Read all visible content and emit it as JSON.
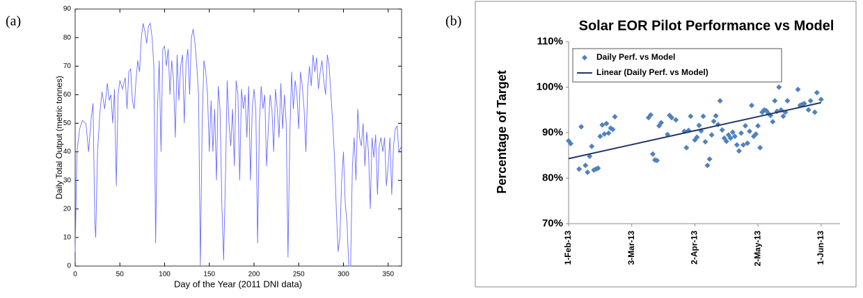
{
  "chart_data": [
    {
      "type": "line",
      "label": "(a)",
      "xlabel": "Day of the Year (2011 DNI data)",
      "ylabel": "Daily Total Output (metric tonnes)",
      "color": "#6b6bff",
      "grid": false,
      "xlim": [
        0,
        365
      ],
      "ylim": [
        0,
        90
      ],
      "xticks": [
        0,
        50,
        100,
        150,
        200,
        250,
        300,
        350
      ],
      "yticks": [
        0,
        10,
        20,
        30,
        40,
        50,
        60,
        70,
        80,
        90
      ],
      "x": [
        0,
        2,
        5,
        8,
        12,
        15,
        18,
        20,
        22,
        23,
        25,
        28,
        30,
        33,
        36,
        38,
        40,
        42,
        44,
        46,
        48,
        50,
        53,
        56,
        58,
        60,
        62,
        64,
        66,
        68,
        70,
        72,
        74,
        76,
        78,
        80,
        82,
        84,
        86,
        88,
        90,
        92,
        94,
        96,
        98,
        100,
        102,
        104,
        106,
        108,
        110,
        112,
        114,
        116,
        118,
        120,
        122,
        124,
        126,
        128,
        130,
        132,
        134,
        136,
        138,
        140,
        142,
        144,
        146,
        148,
        150,
        152,
        154,
        156,
        158,
        160,
        162,
        164,
        166,
        168,
        170,
        172,
        174,
        176,
        178,
        180,
        182,
        184,
        186,
        188,
        190,
        192,
        194,
        196,
        198,
        200,
        202,
        204,
        206,
        208,
        210,
        212,
        214,
        216,
        218,
        220,
        222,
        224,
        226,
        228,
        230,
        232,
        234,
        236,
        238,
        240,
        242,
        244,
        246,
        248,
        250,
        252,
        254,
        256,
        258,
        260,
        262,
        264,
        266,
        268,
        270,
        272,
        274,
        276,
        278,
        280,
        282,
        284,
        286,
        288,
        290,
        292,
        294,
        296,
        298,
        300,
        302,
        304,
        306,
        308,
        310,
        312,
        314,
        316,
        318,
        320,
        322,
        324,
        326,
        328,
        330,
        332,
        334,
        336,
        338,
        340,
        342,
        344,
        346,
        348,
        350,
        352,
        354,
        356,
        358,
        360,
        362,
        365
      ],
      "values": [
        5,
        40,
        48,
        51,
        50,
        40,
        52,
        57,
        15,
        10,
        40,
        55,
        61,
        55,
        64,
        58,
        60,
        50,
        62,
        28,
        60,
        65,
        62,
        66,
        55,
        68,
        69,
        58,
        55,
        65,
        72,
        68,
        80,
        85,
        82,
        78,
        84,
        85,
        80,
        70,
        8,
        55,
        72,
        40,
        76,
        77,
        70,
        76,
        60,
        72,
        65,
        45,
        74,
        58,
        70,
        74,
        50,
        71,
        76,
        60,
        80,
        83,
        78,
        70,
        60,
        0,
        50,
        72,
        68,
        60,
        40,
        58,
        40,
        55,
        30,
        63,
        55,
        22,
        2,
        30,
        65,
        50,
        42,
        55,
        35,
        65,
        60,
        30,
        62,
        55,
        60,
        45,
        63,
        30,
        55,
        62,
        55,
        8,
        50,
        63,
        55,
        60,
        35,
        48,
        60,
        55,
        40,
        62,
        55,
        45,
        64,
        48,
        60,
        50,
        3,
        45,
        68,
        55,
        65,
        60,
        48,
        68,
        63,
        55,
        40,
        62,
        70,
        63,
        74,
        68,
        73,
        62,
        68,
        72,
        65,
        60,
        74,
        70,
        60,
        50,
        38,
        20,
        5,
        10,
        30,
        40,
        22,
        15,
        0,
        0,
        35,
        45,
        30,
        55,
        45,
        42,
        50,
        35,
        47,
        40,
        20,
        45,
        38,
        46,
        25,
        42,
        45,
        40,
        45,
        28,
        35,
        45,
        25,
        42,
        48,
        49,
        40,
        42
      ]
    },
    {
      "type": "scatter",
      "label": "(b)",
      "title": "Solar EOR Pilot Performance vs Model",
      "ylabel": "Percentage of Target",
      "grid": false,
      "legend": "top-left",
      "xlim": [
        "2013-02-01",
        "2013-06-10"
      ],
      "ylim": [
        70,
        110
      ],
      "xticks": [
        {
          "value": "2013-02-01",
          "label": "1-Feb-13"
        },
        {
          "value": "2013-03-03",
          "label": "3-Mar-13"
        },
        {
          "value": "2013-04-02",
          "label": "2-Apr-13"
        },
        {
          "value": "2013-05-02",
          "label": "2-May-13"
        },
        {
          "value": "2013-06-01",
          "label": "1-Jun-13"
        }
      ],
      "yticks": [
        {
          "value": 70,
          "label": "70%"
        },
        {
          "value": 80,
          "label": "80%"
        },
        {
          "value": 90,
          "label": "90%"
        },
        {
          "value": 100,
          "label": "100%"
        },
        {
          "value": 110,
          "label": "110%"
        }
      ],
      "series": [
        {
          "name": "Daily Perf. vs Model",
          "color": "#4f81bd",
          "marker": "diamond",
          "x": [
            "2013-02-01",
            "2013-02-02",
            "2013-02-06",
            "2013-02-07",
            "2013-02-09",
            "2013-02-10",
            "2013-02-11",
            "2013-02-12",
            "2013-02-13",
            "2013-02-14",
            "2013-02-15",
            "2013-02-16",
            "2013-02-17",
            "2013-02-18",
            "2013-02-19",
            "2013-02-20",
            "2013-02-21",
            "2013-02-22",
            "2013-02-23",
            "2013-03-11",
            "2013-03-12",
            "2013-03-13",
            "2013-03-14",
            "2013-03-15",
            "2013-03-16",
            "2013-03-17",
            "2013-03-20",
            "2013-03-21",
            "2013-03-22",
            "2013-03-24",
            "2013-03-28",
            "2013-03-29",
            "2013-03-30",
            "2013-03-31",
            "2013-04-02",
            "2013-04-03",
            "2013-04-04",
            "2013-04-05",
            "2013-04-06",
            "2013-04-07",
            "2013-04-08",
            "2013-04-09",
            "2013-04-10",
            "2013-04-11",
            "2013-04-12",
            "2013-04-13",
            "2013-04-14",
            "2013-04-15",
            "2013-04-16",
            "2013-04-17",
            "2013-04-18",
            "2013-04-19",
            "2013-04-20",
            "2013-04-21",
            "2013-04-22",
            "2013-04-23",
            "2013-04-24",
            "2013-04-25",
            "2013-04-26",
            "2013-04-27",
            "2013-04-28",
            "2013-04-29",
            "2013-04-30",
            "2013-05-01",
            "2013-05-02",
            "2013-05-03",
            "2013-05-04",
            "2013-05-05",
            "2013-05-06",
            "2013-05-07",
            "2013-05-08",
            "2013-05-09",
            "2013-05-10",
            "2013-05-11",
            "2013-05-12",
            "2013-05-13",
            "2013-05-14",
            "2013-05-15",
            "2013-05-16",
            "2013-05-21",
            "2013-05-22",
            "2013-05-23",
            "2013-05-24",
            "2013-05-26",
            "2013-05-27",
            "2013-05-29",
            "2013-05-30",
            "2013-06-01"
          ],
          "values": [
            88.2,
            87.6,
            82,
            91.3,
            82.8,
            81.3,
            84.8,
            87,
            81.8,
            82,
            82.2,
            89.2,
            91.7,
            89.7,
            92,
            89.9,
            91,
            90.7,
            93.5,
            93.3,
            93.9,
            85.3,
            84,
            83.9,
            91.5,
            92.2,
            89.6,
            93.8,
            93.3,
            92.8,
            90.3,
            86.7,
            90.5,
            93.6,
            88.4,
            89,
            91.6,
            90.4,
            93.6,
            88,
            82.8,
            84.2,
            89.5,
            92.5,
            93.7,
            91.8,
            97,
            90.6,
            88.8,
            88.1,
            89.5,
            88.8,
            90.1,
            89.2,
            87.3,
            86,
            89.9,
            87.3,
            91.5,
            87.7,
            90.3,
            96,
            89.2,
            89.7,
            91.5,
            86.7,
            94.5,
            95,
            94.8,
            94.2,
            93.8,
            92.4,
            97,
            94.7,
            100,
            95,
            93.6,
            94.5,
            97,
            99.5,
            96,
            96.2,
            96.4,
            95,
            97,
            94.5,
            98.8,
            97.3
          ]
        },
        {
          "name": "Linear (Daily Perf. vs Model)",
          "color": "#1f3864",
          "marker": "line",
          "x": [
            "2013-02-01",
            "2013-06-01"
          ],
          "values": [
            84.3,
            96.6
          ]
        }
      ]
    }
  ]
}
